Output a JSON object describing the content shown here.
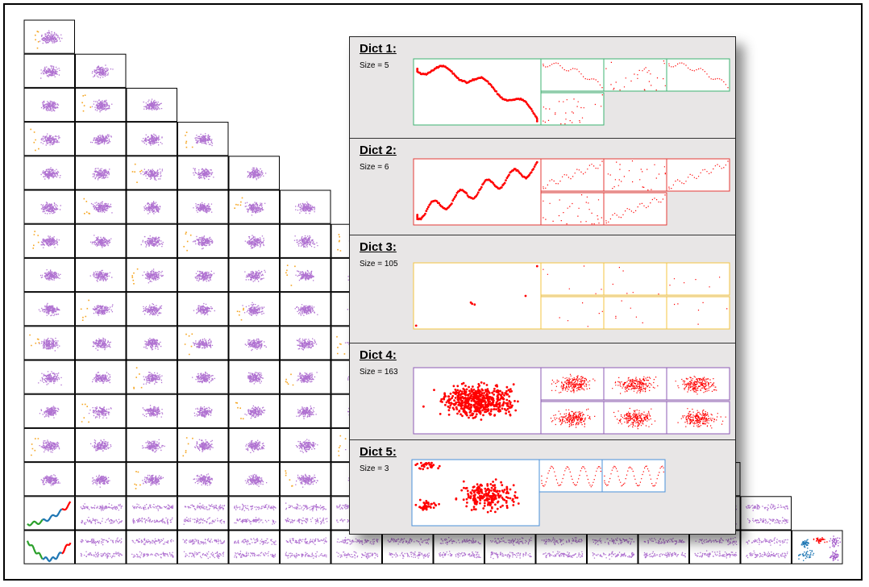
{
  "colors": {
    "points": "#a259c9",
    "highlight": "#ff0000",
    "cluster_orange": "#f5a623",
    "cluster_green": "#2ca02c",
    "cluster_blue": "#1f77b4"
  },
  "dicts": [
    {
      "title": "Dict 1:",
      "size_label": "Size = 5",
      "border": "#3cb371",
      "thumbs": 4,
      "pattern": "decline"
    },
    {
      "title": "Dict 2:",
      "size_label": "Size = 6",
      "border": "#e53935",
      "thumbs": 5,
      "pattern": "rise"
    },
    {
      "title": "Dict 3:",
      "size_label": "Size = 105",
      "border": "#f4c542",
      "thumbs": 6,
      "pattern": "sparse"
    },
    {
      "title": "Dict 4:",
      "size_label": "Size = 163",
      "border": "#8e5bb5",
      "thumbs": 6,
      "pattern": "cloud"
    },
    {
      "title": "Dict 5:",
      "size_label": "Size = 3",
      "border": "#4a90d9",
      "thumbs": 2,
      "pattern": "clusters"
    }
  ]
}
